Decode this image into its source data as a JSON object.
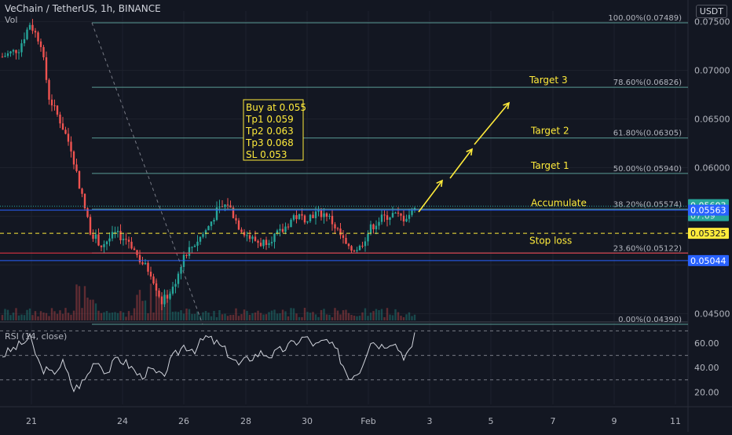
{
  "header": {
    "symbol": "VeChain / TetherUS, 1h, BINANCE",
    "volume_label": "Vol"
  },
  "currency_button": "USDT",
  "rsi_label": "RSI (14, close)",
  "colors": {
    "background": "#131722",
    "grid": "#1e222d",
    "up": "#26a69a",
    "down": "#ef5350",
    "fib": "#5a9b96",
    "fib_level": "#b2b5be",
    "annotation_yellow": "#ffeb3b",
    "stop_loss_line": "#f23645",
    "blue_line": "#2962ff",
    "rsi_line": "#d1d4dc"
  },
  "note_box": {
    "lines": [
      "Buy at 0.055",
      "Tp1 0.059",
      "Tp2 0.063",
      "Tp3 0.068",
      "SL 0.053"
    ]
  },
  "labels": {
    "target3": "Target 3",
    "target2": "Target 2",
    "target1": "Target 1",
    "accumulate": "Accumulate",
    "stop_loss": "Stop loss"
  },
  "price_badges": {
    "current_price": "0.05603",
    "countdown": "07:09",
    "blue_upper": "0.05563",
    "yellow": "0.05325",
    "blue_lower": "0.05044"
  },
  "chart_data": {
    "type": "candlestick",
    "ylim": [
      0.0443,
      0.0761
    ],
    "price_ticks": [
      "0.07500",
      "0.07000",
      "0.06500",
      "0.06000",
      "0.04500"
    ],
    "time_ticks": [
      "21",
      "24",
      "26",
      "28",
      "30",
      "Feb",
      "3",
      "5",
      "7",
      "9",
      "11"
    ],
    "fib_levels": [
      {
        "label": "100.00%(0.07489)",
        "price": 0.07489
      },
      {
        "label": "78.60%(0.06826)",
        "price": 0.06826
      },
      {
        "label": "61.80%(0.06305)",
        "price": 0.06305
      },
      {
        "label": "50.00%(0.05940)",
        "price": 0.0594
      },
      {
        "label": "38.20%(0.05574)",
        "price": 0.05574
      },
      {
        "label": "23.60%(0.05122)",
        "price": 0.05122
      },
      {
        "label": "0.00%(0.04390)",
        "price": 0.0439
      }
    ],
    "horizontal_lines": {
      "blue_upper": 0.05563,
      "yellow_dashed": 0.05325,
      "blue_lower": 0.05044
    },
    "price_keypoints": [
      {
        "t": 0,
        "p": 0.0714
      },
      {
        "t": 6,
        "p": 0.0722
      },
      {
        "t": 10,
        "p": 0.0748
      },
      {
        "t": 14,
        "p": 0.0728
      },
      {
        "t": 17,
        "p": 0.0672
      },
      {
        "t": 21,
        "p": 0.0648
      },
      {
        "t": 25,
        "p": 0.062
      },
      {
        "t": 29,
        "p": 0.057
      },
      {
        "t": 32,
        "p": 0.0535
      },
      {
        "t": 36,
        "p": 0.052
      },
      {
        "t": 41,
        "p": 0.0532
      },
      {
        "t": 46,
        "p": 0.0525
      },
      {
        "t": 50,
        "p": 0.0505
      },
      {
        "t": 54,
        "p": 0.0492
      },
      {
        "t": 58,
        "p": 0.0462
      },
      {
        "t": 62,
        "p": 0.0475
      },
      {
        "t": 66,
        "p": 0.051
      },
      {
        "t": 70,
        "p": 0.0522
      },
      {
        "t": 74,
        "p": 0.0535
      },
      {
        "t": 78,
        "p": 0.0555
      },
      {
        "t": 82,
        "p": 0.0563
      },
      {
        "t": 86,
        "p": 0.054
      },
      {
        "t": 90,
        "p": 0.0528
      },
      {
        "t": 94,
        "p": 0.0522
      },
      {
        "t": 98,
        "p": 0.0528
      },
      {
        "t": 102,
        "p": 0.0535
      },
      {
        "t": 106,
        "p": 0.055
      },
      {
        "t": 110,
        "p": 0.0548
      },
      {
        "t": 114,
        "p": 0.0553
      },
      {
        "t": 118,
        "p": 0.0552
      },
      {
        "t": 122,
        "p": 0.0535
      },
      {
        "t": 126,
        "p": 0.0515
      },
      {
        "t": 130,
        "p": 0.0518
      },
      {
        "t": 134,
        "p": 0.0538
      },
      {
        "t": 138,
        "p": 0.0548
      },
      {
        "t": 142,
        "p": 0.0552
      },
      {
        "t": 146,
        "p": 0.0548
      },
      {
        "t": 149,
        "p": 0.0554
      },
      {
        "t": 150,
        "p": 0.0562
      }
    ],
    "rsi": {
      "ticks": [
        "60.00",
        "40.00",
        "20.00"
      ],
      "ylim": [
        10,
        76
      ],
      "levels": [
        70,
        50,
        30
      ],
      "keypoints": [
        {
          "t": 0,
          "v": 50
        },
        {
          "t": 6,
          "v": 58
        },
        {
          "t": 10,
          "v": 64
        },
        {
          "t": 14,
          "v": 40
        },
        {
          "t": 18,
          "v": 35
        },
        {
          "t": 22,
          "v": 44
        },
        {
          "t": 26,
          "v": 22
        },
        {
          "t": 30,
          "v": 30
        },
        {
          "t": 34,
          "v": 47
        },
        {
          "t": 38,
          "v": 36
        },
        {
          "t": 42,
          "v": 48
        },
        {
          "t": 46,
          "v": 42
        },
        {
          "t": 50,
          "v": 33
        },
        {
          "t": 54,
          "v": 38
        },
        {
          "t": 58,
          "v": 32
        },
        {
          "t": 62,
          "v": 48
        },
        {
          "t": 66,
          "v": 58
        },
        {
          "t": 70,
          "v": 55
        },
        {
          "t": 74,
          "v": 65
        },
        {
          "t": 78,
          "v": 60
        },
        {
          "t": 82,
          "v": 52
        },
        {
          "t": 86,
          "v": 42
        },
        {
          "t": 90,
          "v": 48
        },
        {
          "t": 94,
          "v": 52
        },
        {
          "t": 98,
          "v": 50
        },
        {
          "t": 102,
          "v": 55
        },
        {
          "t": 106,
          "v": 60
        },
        {
          "t": 110,
          "v": 65
        },
        {
          "t": 114,
          "v": 58
        },
        {
          "t": 118,
          "v": 62
        },
        {
          "t": 122,
          "v": 52
        },
        {
          "t": 126,
          "v": 32
        },
        {
          "t": 130,
          "v": 38
        },
        {
          "t": 134,
          "v": 62
        },
        {
          "t": 138,
          "v": 58
        },
        {
          "t": 142,
          "v": 62
        },
        {
          "t": 146,
          "v": 50
        },
        {
          "t": 149,
          "v": 54
        },
        {
          "t": 150,
          "v": 70
        }
      ]
    }
  }
}
